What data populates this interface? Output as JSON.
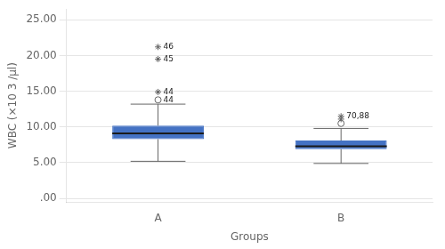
{
  "chart_data": {
    "type": "box",
    "x_label": "Groups",
    "y_label": "WBC (×10 3 /µl)",
    "categories": [
      "A",
      "B"
    ],
    "color": "#4472C4",
    "whisker_low": [
      5.2,
      4.9
    ],
    "q1": [
      8.3,
      6.9
    ],
    "median": [
      9.1,
      7.3
    ],
    "q3": [
      10.2,
      8.1
    ],
    "whisker_high": [
      13.2,
      9.8
    ],
    "outliers": [
      {
        "category": "A",
        "value": 13.8,
        "marker": "circle",
        "label": "44"
      },
      {
        "category": "A",
        "value": 14.9,
        "marker": "star",
        "label": "44"
      },
      {
        "category": "A",
        "value": 19.5,
        "marker": "star",
        "label": "45"
      },
      {
        "category": "A",
        "value": 21.2,
        "marker": "star",
        "label": "46"
      },
      {
        "category": "B",
        "value": 10.5,
        "marker": "circle"
      },
      {
        "category": "B",
        "value": 11.1,
        "marker": "star"
      },
      {
        "category": "B",
        "value": 11.5,
        "marker": "star",
        "label": "70,88"
      }
    ],
    "ylim": [
      -0.5,
      26.5
    ],
    "yticks": [
      {
        "value": 0.0,
        "label": ".00"
      },
      {
        "value": 5.0,
        "label": "5.00"
      },
      {
        "value": 10.0,
        "label": "10.00"
      },
      {
        "value": 15.0,
        "label": "15.00"
      },
      {
        "value": 20.0,
        "label": "20.00"
      },
      {
        "value": 25.0,
        "label": "25.00"
      }
    ],
    "grid": "y"
  }
}
